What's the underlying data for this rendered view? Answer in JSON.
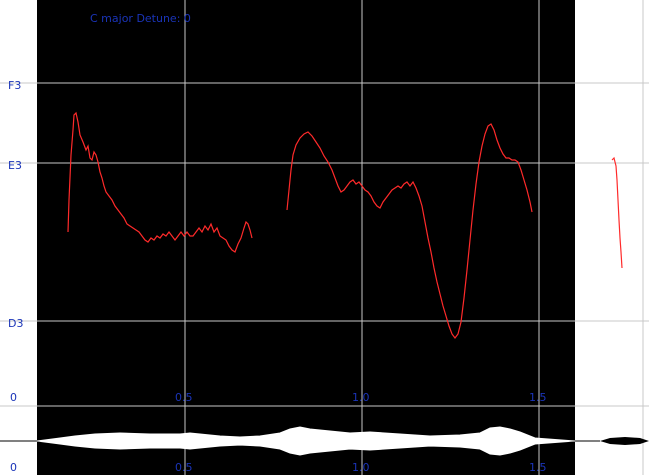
{
  "header": {
    "key_label": "C major  Detune: 0"
  },
  "pitch_labels": [
    "F3",
    "E3",
    "D3"
  ],
  "time_labels": [
    "0",
    "0.5",
    "1.0",
    "1.5"
  ],
  "colors": {
    "background_light": "#ffffff",
    "voiced_region": "#000000",
    "grid": "#c8c8c8",
    "pitch_curve": "#ff2a2a",
    "label_text": "#1a34b8",
    "waveform": "#ffffff",
    "waveform_outside": "#000000"
  },
  "icons": {
    "waveform": "audio-waveform-icon"
  }
}
